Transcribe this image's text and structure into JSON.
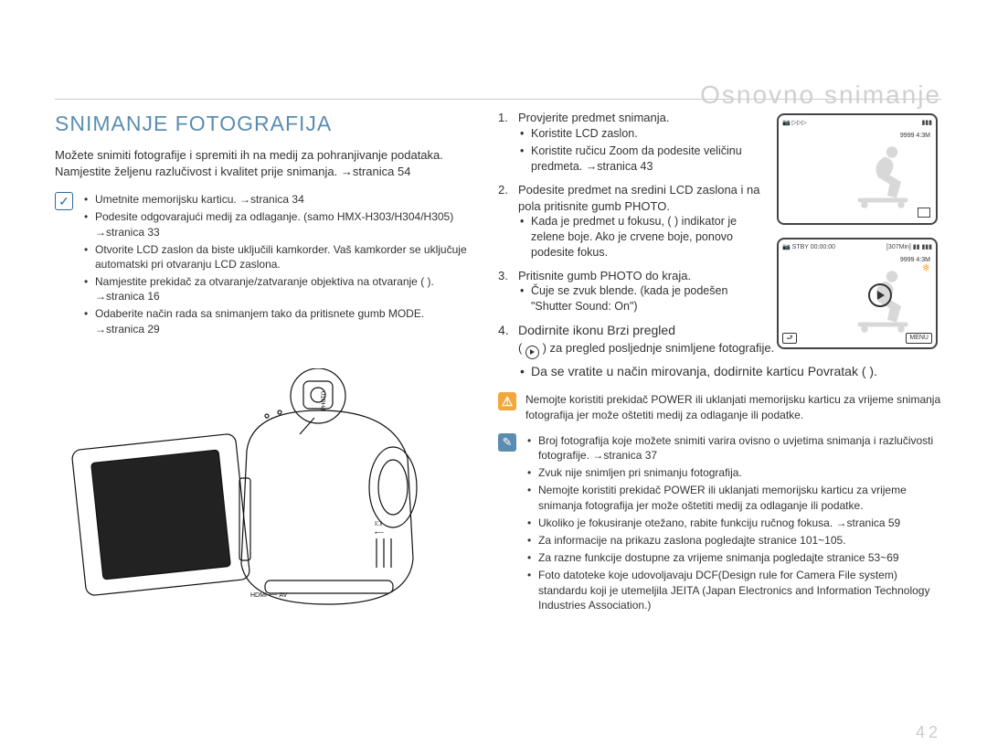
{
  "header_faded": "Osnovno snimanje",
  "section_title": "SNIMANJE FOTOGRAFIJA",
  "intro": "Možete snimiti fotografije i spremiti ih na medij za pohranjivanje podataka. Namjestite željenu razlučivost i kvalitet prije snimanja. →stranica 54",
  "prep_notes": [
    "Umetnite memorijsku karticu. →stranica 34",
    "Podesite odgovarajući medij za odlaganje. (samo HMX-H303/H304/H305) →stranica 33",
    "Otvorite LCD zaslon da biste uključili kamkorder. Vaš kamkorder se uključuje automatski pri otvaranju LCD zaslona.",
    "Namjestite prekidač za otvaranje/zatvaranje objektiva na otvaranje ( ). →stranica 16",
    "Odaberite način rada sa snimanjem tako da pritisnete gumb MODE. →stranica 29"
  ],
  "steps": [
    {
      "text": "Provjerite predmet snimanja.",
      "subs": [
        "Koristite LCD zaslon.",
        "Koristite ručicu Zoom da podesite veličinu predmeta. →stranica 43"
      ]
    },
    {
      "text": "Podesite predmet na sredini LCD zaslona i na pola pritisnite gumb PHOTO.",
      "subs": [
        "Kada je predmet u fokusu, (  ) indikator je zelene boje. Ako je crvene boje, ponovo podesite fokus."
      ]
    },
    {
      "text": "Pritisnite gumb PHOTO do kraja.",
      "subs": [
        "Čuje se zvuk blende. (kada je podešen \"Shutter Sound: On\")"
      ]
    }
  ],
  "step4_title": "Dodirnite ikonu Brzi pregled",
  "step4_line2": "(   ) za pregled posljednje snimljene fotografije.",
  "step4_sub": "Da se vratite u način mirovanja, dodirnite karticu Povratak (   ).",
  "warn_text": "Nemojte koristiti prekidač POWER ili uklanjati memorijsku karticu za vrijeme snimanja fotografija jer može oštetiti medij za odlaganje ili podatke.",
  "info_notes": [
    "Broj fotografija koje možete snimiti varira ovisno o uvjetima snimanja i razlučivosti fotografije. →stranica 37",
    "Zvuk nije snimljen pri snimanju fotografija.",
    "Nemojte koristiti prekidač POWER ili uklanjati memorijsku karticu za vrijeme snimanja fotografija jer može oštetiti medij za odlaganje ili podatke.",
    "Ukoliko je fokusiranje otežano, rabite funkciju ručnog fokusa. →stranica 59",
    "Za informacije na prikazu zaslona pogledajte stranice 101~105.",
    "Za razne funkcije dostupne za vrijeme snimanja pogledajte stranice 53~69",
    "Foto datoteke koje udovoljavaju DCF(Design rule for Camera File system) standardu koji je utemeljila JEITA (Japan Electronics and Information Technology Industries Association.)"
  ],
  "screen1": {
    "top_right": "9999  4:3M"
  },
  "screen2": {
    "top_left": "STBY  00:00:00",
    "top_right": "[307Min]",
    "line2": "9999  4:3M",
    "menu": "MENU"
  },
  "page_number": "42",
  "colors": {
    "accent": "#5b8db0",
    "faded": "#d0d0d0",
    "text": "#333333",
    "warn_bg": "#f3a73c",
    "checkblue": "#2a6aa0"
  }
}
